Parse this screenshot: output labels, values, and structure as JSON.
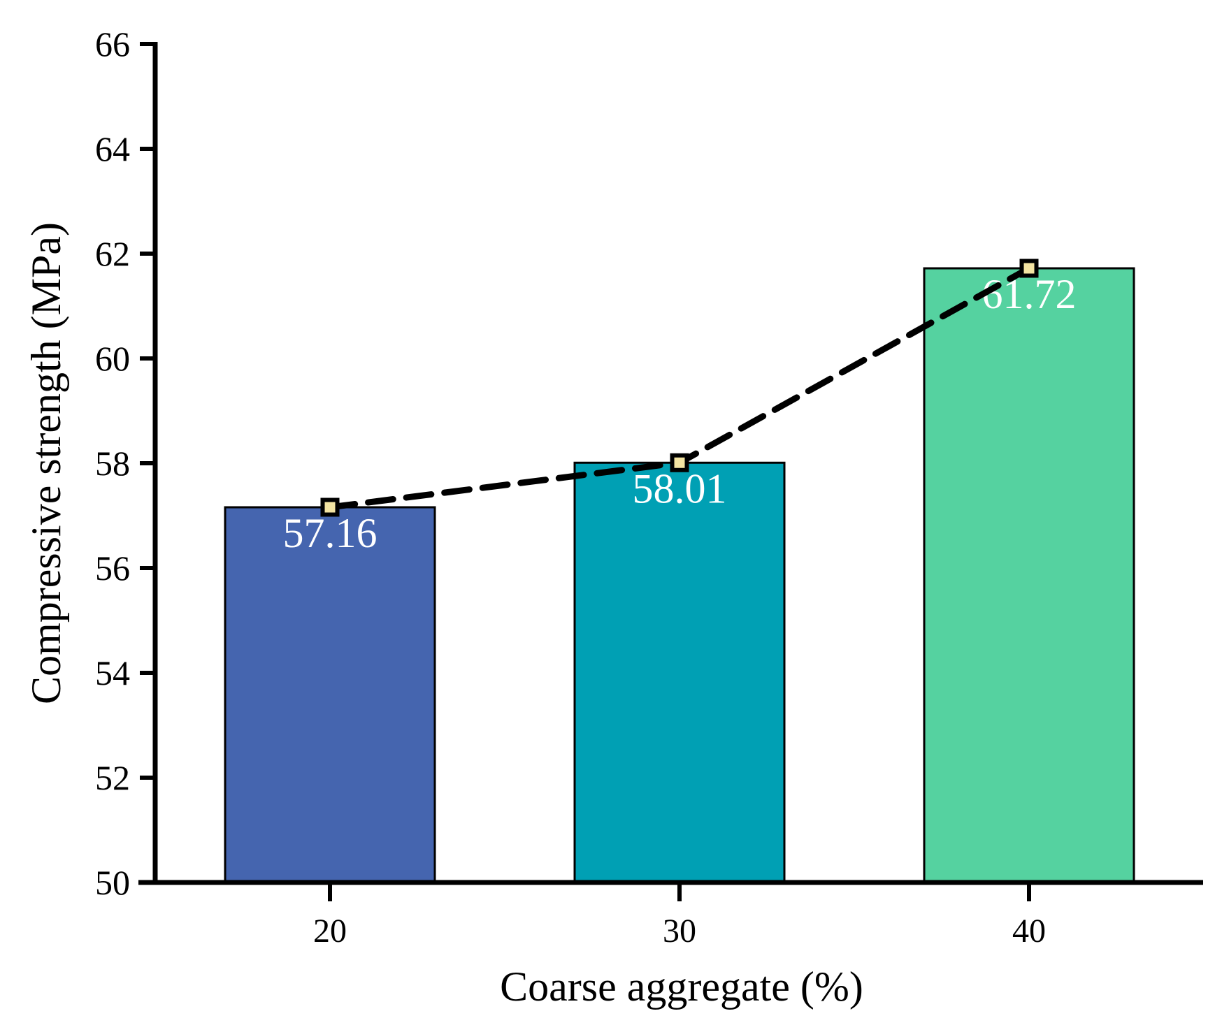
{
  "chart_data": {
    "type": "bar",
    "title": "",
    "xlabel": "Coarse aggregate (%)",
    "ylabel": "Compressive strength (MPa)",
    "categories": [
      "20",
      "30",
      "40"
    ],
    "values": [
      57.16,
      58.01,
      61.72
    ],
    "value_labels": [
      "57.16",
      "58.01",
      "61.72"
    ],
    "series": [
      {
        "type": "bar",
        "values": [
          57.16,
          58.01,
          61.72
        ]
      },
      {
        "type": "line",
        "values": [
          57.16,
          58.01,
          61.72
        ],
        "style": "dashed",
        "marker": "square"
      }
    ],
    "ylim": [
      50,
      66
    ],
    "ytick_step": 2,
    "yticks": [
      "50",
      "52",
      "54",
      "56",
      "58",
      "60",
      "62",
      "64",
      "66"
    ],
    "grid": false,
    "legend": "none",
    "colors": {
      "bars": [
        "#4565AF",
        "#00A0B4",
        "#55D2A0"
      ],
      "bar_edge": "#000000",
      "line": "#000000",
      "marker_fill": "#F3E4A2",
      "marker_edge": "#000000",
      "value_label": "#FFFFFF",
      "axis": "#000000",
      "background": "#FFFFFF"
    }
  }
}
